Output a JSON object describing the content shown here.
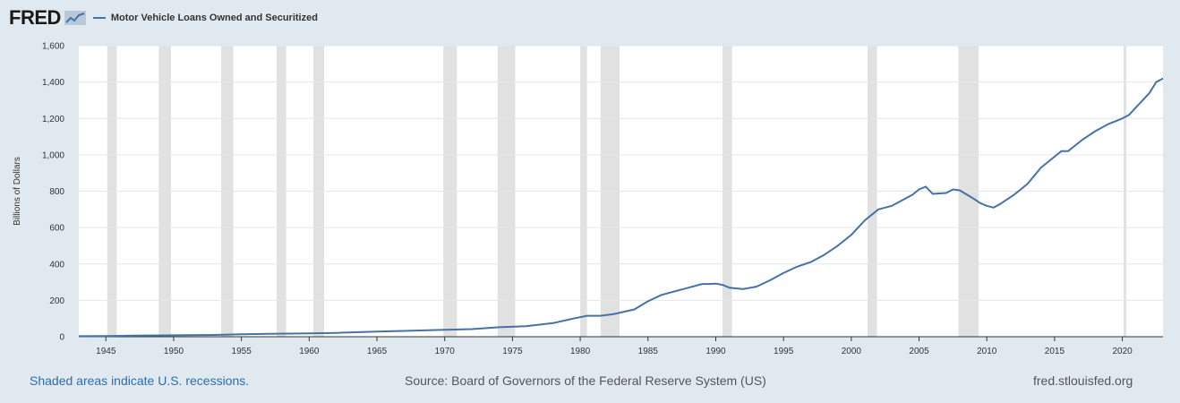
{
  "header": {
    "logo_text": "FRED",
    "series_title": "Motor Vehicle Loans Owned and Securitized"
  },
  "footer": {
    "recession_note": "Shaded areas indicate U.S. recessions.",
    "source": "Source: Board of Governors of the Federal Reserve System (US)",
    "site": "fred.stlouisfed.org"
  },
  "colors": {
    "line": "#4572a7",
    "recession": "#e1e1e1",
    "background": "#e1e9f0",
    "plot": "#ffffff"
  },
  "chart_data": {
    "type": "line",
    "title": "",
    "xlabel": "",
    "ylabel": "Billions of Dollars",
    "xlim": [
      1943.0,
      2023.0
    ],
    "ylim": [
      0,
      1600
    ],
    "x_ticks": [
      1945,
      1950,
      1955,
      1960,
      1965,
      1970,
      1975,
      1980,
      1985,
      1990,
      1995,
      2000,
      2005,
      2010,
      2015,
      2020
    ],
    "y_ticks": [
      0,
      200,
      400,
      600,
      800,
      1000,
      1200,
      1400,
      1600
    ],
    "y_tick_labels": [
      "0",
      "200",
      "400",
      "600",
      "800",
      "1,000",
      "1,200",
      "1,400",
      "1,600"
    ],
    "grid": true,
    "legend_position": "top-left",
    "recessions": [
      [
        1945.1,
        1945.8
      ],
      [
        1948.9,
        1949.8
      ],
      [
        1953.5,
        1954.4
      ],
      [
        1957.6,
        1958.3
      ],
      [
        1960.3,
        1961.1
      ],
      [
        1969.9,
        1970.9
      ],
      [
        1973.9,
        1975.2
      ],
      [
        1980.0,
        1980.5
      ],
      [
        1981.5,
        1982.9
      ],
      [
        1990.5,
        1991.2
      ],
      [
        2001.2,
        2001.9
      ],
      [
        2007.9,
        2009.4
      ],
      [
        2020.1,
        2020.3
      ]
    ],
    "series": [
      {
        "x": [
          1943.0,
          1945,
          1947,
          1950,
          1953,
          1955,
          1957,
          1960,
          1962,
          1965,
          1967,
          1970,
          1972,
          1974,
          1976,
          1978,
          1979.5,
          1980.5,
          1981.5,
          1982.5,
          1984,
          1985,
          1986,
          1987,
          1988,
          1989,
          1989.5,
          1990,
          1990.5,
          1991,
          1992,
          1993,
          1994,
          1995,
          1996,
          1997,
          1998,
          1999,
          2000,
          2001,
          2002,
          2003,
          2004,
          2004.5,
          2005,
          2005.5,
          2006,
          2007,
          2007.5,
          2008,
          2009,
          2009.5,
          2010,
          2010.5,
          2011,
          2012,
          2013,
          2014,
          2015,
          2015.5,
          2016,
          2017,
          2018,
          2019,
          2020,
          2020.5,
          2021,
          2021.5,
          2022,
          2022.5,
          2023.0
        ],
        "values": [
          3,
          4,
          6,
          8,
          10,
          14,
          16,
          18,
          21,
          28,
          32,
          38,
          42,
          52,
          58,
          75,
          100,
          115,
          115,
          125,
          150,
          195,
          230,
          250,
          270,
          290,
          290,
          292,
          285,
          270,
          262,
          275,
          310,
          350,
          385,
          410,
          450,
          500,
          560,
          640,
          700,
          720,
          760,
          780,
          810,
          825,
          785,
          790,
          810,
          805,
          760,
          735,
          720,
          710,
          730,
          780,
          840,
          930,
          990,
          1020,
          1020,
          1080,
          1130,
          1170,
          1200,
          1220,
          1260,
          1300,
          1340,
          1400,
          1420
        ]
      }
    ]
  }
}
